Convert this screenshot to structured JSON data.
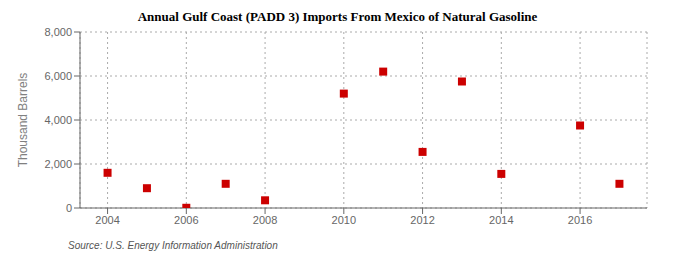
{
  "chart_data": {
    "type": "scatter",
    "title": "Annual Gulf Coast (PADD 3) Imports From Mexico of Natural Gasoline",
    "ylabel": "Thousand Barrels",
    "annotation": "Source: U.S. Energy Information Administration",
    "x": [
      2004,
      2005,
      2006,
      2007,
      2008,
      2010,
      2011,
      2012,
      2013,
      2014,
      2016,
      2017
    ],
    "values": [
      1600,
      900,
      10,
      1100,
      350,
      5200,
      6200,
      2550,
      5750,
      1550,
      3750,
      1100
    ],
    "color": "#cc0000",
    "marker": "square",
    "xlim": [
      2003.3,
      2017.7
    ],
    "ylim": [
      0,
      8000
    ],
    "xticks": [
      2004,
      2006,
      2008,
      2010,
      2012,
      2014,
      2016
    ],
    "yticks": [
      0,
      {
        "value": 2000,
        "label": "2,000"
      },
      {
        "value": 4000,
        "label": "4,000"
      },
      {
        "value": 6000,
        "label": "6,000"
      },
      {
        "value": 8000,
        "label": "8,000"
      }
    ],
    "grid": true
  }
}
